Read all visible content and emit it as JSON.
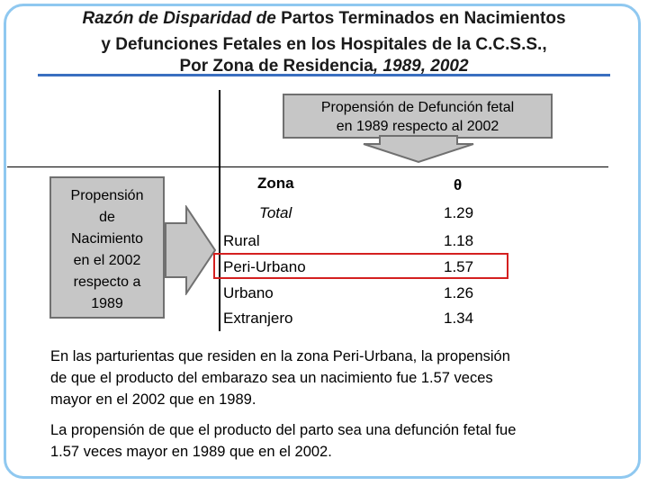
{
  "title": {
    "line1_italic": "Razón de Disparidad de",
    "line1_rest": " Partos Terminados en Nacimientos",
    "line2": "y Defunciones Fetales en los Hospitales de la C.C.S.S.,",
    "line3_main": "Por Zona de Residencia",
    "line3_italic": ", 1989, 2002"
  },
  "callout_top": {
    "line1": "Propensión de Defunción fetal",
    "line2": "en 1989 respecto al 2002"
  },
  "callout_left": {
    "lines": [
      "Propensión",
      "de",
      "Nacimiento",
      "en el 2002",
      "respecto a",
      "1989"
    ]
  },
  "table": {
    "header_zona": "Zona",
    "header_theta": "θ",
    "rows": [
      {
        "zona": "Total",
        "theta": "1.29"
      },
      {
        "zona": "Rural",
        "theta": "1.18"
      },
      {
        "zona": "Peri-Urbano",
        "theta": "1.57"
      },
      {
        "zona": "Urbano",
        "theta": "1.26"
      },
      {
        "zona": "Extranjero",
        "theta": "1.34"
      }
    ]
  },
  "paragraph1": {
    "lines": [
      "En las parturientas que residen en la zona Peri-Urbana, la propensión",
      "de que el producto del embarazo sea un nacimiento fue 1.57 veces",
      "mayor en el 2002 que en 1989."
    ]
  },
  "paragraph2": {
    "lines": [
      "La propensión de que el producto del parto sea una defunción fetal fue",
      "1.57 veces mayor en 1989 que en el 2002."
    ]
  },
  "colors": {
    "frame": "#8fc8f0",
    "title_rule": "#3a6fc0",
    "callout_fill": "#c6c6c6",
    "highlight": "#d42020"
  }
}
